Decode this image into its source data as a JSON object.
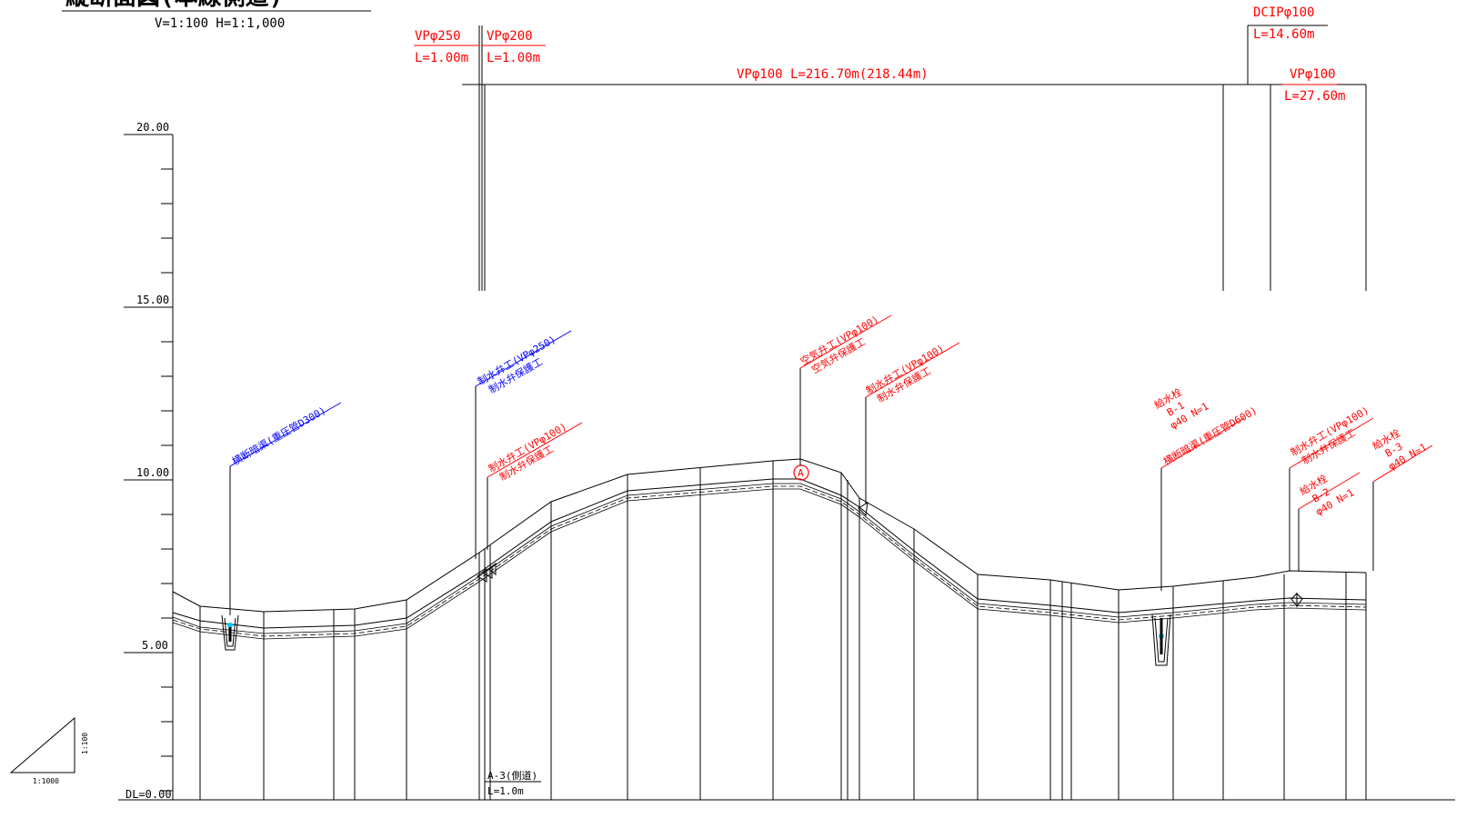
{
  "header": {
    "title": "縦断面図(本線側道)",
    "scale": "V=1:100 H=1:1,000"
  },
  "elevation_labels": [
    "20.00",
    "15.00",
    "10.00",
    "5.00",
    "DL=0.00"
  ],
  "pipe_segments": {
    "vp250": {
      "name": "VPφ250",
      "length": "L=1.00m"
    },
    "vp200": {
      "name": "VPφ200",
      "length": "L=1.00m"
    },
    "vp100_main": {
      "label": "VPφ100  L=216.70m(218.44m)"
    },
    "dcip100": {
      "name": "DCIPφ100",
      "length": "L=14.60m"
    },
    "vp100_end": {
      "name": "VPφ100",
      "length": "L=27.60m"
    }
  },
  "callouts": {
    "culvert_left": "横断暗渠(重圧管D300)",
    "valve_250_a": "制水弁工(VPφ250)",
    "valve_250_b": "制水弁保護工",
    "valve_100a_a": "制水弁工(VPφ100)",
    "valve_100a_b": "制水弁保護工",
    "air_valve_a": "空気弁工(VPφ100)",
    "air_valve_b": "空気弁保護工",
    "valve_100b_a": "制水弁工(VPφ100)",
    "valve_100b_b": "制水弁保護工",
    "hydrant_b1_a": "給水栓",
    "hydrant_b1_b": "B-1",
    "hydrant_b1_c": "φ40 N=1",
    "culvert_right": "横断暗渠(重圧管D600)",
    "valve_100c_a": "制水弁工(VPφ100)",
    "valve_100c_b": "制水弁保護工",
    "hydrant_b2_a": "給水栓",
    "hydrant_b2_b": "B-2",
    "hydrant_b2_c": "φ40 N=1",
    "hydrant_b3_a": "給水栓",
    "hydrant_b3_b": "B-3",
    "hydrant_b3_c": "φ40 N=1"
  },
  "marker_a": "A",
  "station": {
    "name": "A-3(側道)",
    "length": "L=1.0m"
  },
  "slope_legend": {
    "vertical": "1:100",
    "horizontal": "1:1000"
  }
}
